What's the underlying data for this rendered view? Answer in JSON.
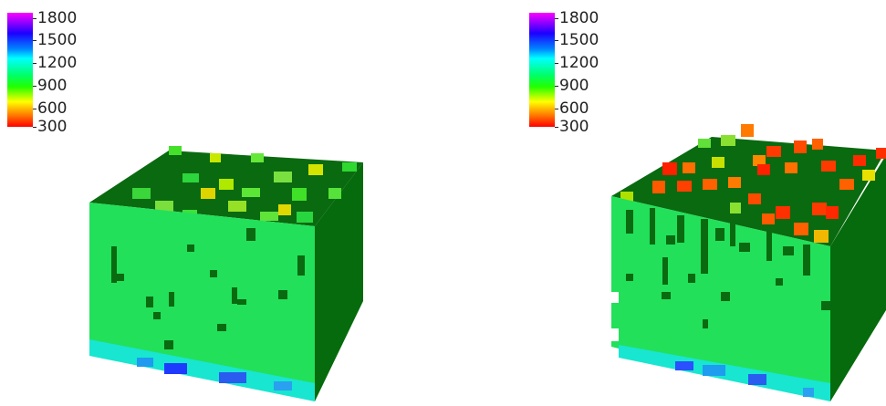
{
  "panels": [
    {
      "colorbar": {
        "ticks": [
          "1800",
          "1500",
          "1200",
          "900",
          "600",
          "300"
        ],
        "colors": [
          "#ff00ff",
          "#1c00ff",
          "#00ffff",
          "#22ff00",
          "#ffff00",
          "#ff0000"
        ]
      }
    },
    {
      "colorbar": {
        "ticks": [
          "1800",
          "1500",
          "1200",
          "900",
          "600",
          "300"
        ],
        "colors": [
          "#ff00ff",
          "#1c00ff",
          "#00ffff",
          "#22ff00",
          "#ffff00",
          "#ff0000"
        ]
      }
    }
  ]
}
